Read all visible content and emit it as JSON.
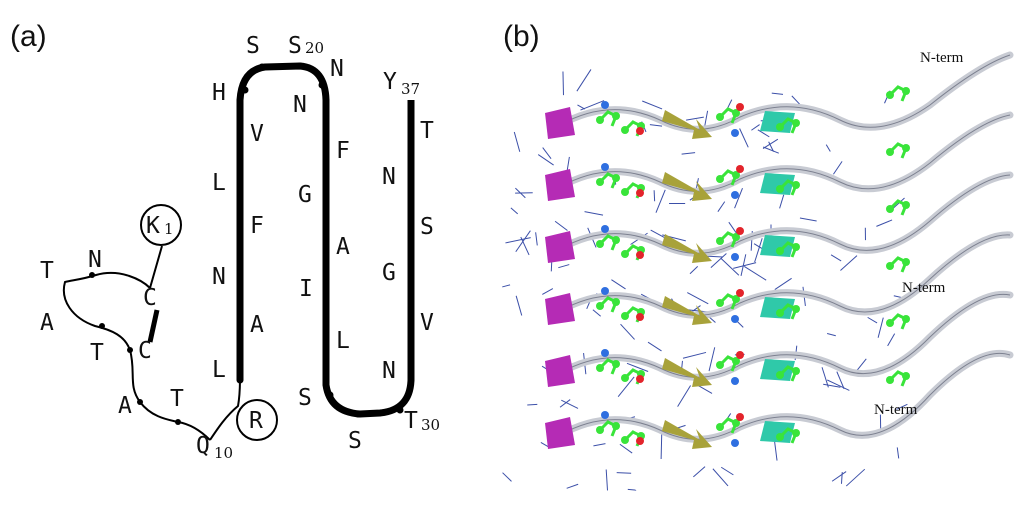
{
  "panels": {
    "a_label": "(a)",
    "b_label": "(b)"
  },
  "residues": {
    "r1": "K",
    "r1_num": "1",
    "r2": "C",
    "r3": "N",
    "r4": "T",
    "r5": "A",
    "r6": "T",
    "r7": "C",
    "r8": "A",
    "r9": "T",
    "r10": "Q",
    "r10_num": "10",
    "r11": "R",
    "r12": "L",
    "r13": "A",
    "r14": "N",
    "r15": "F",
    "r16": "L",
    "r17": "V",
    "r18": "H",
    "r19": "S",
    "r20": "S",
    "r20_num": "20",
    "r21": "N",
    "r22": "N",
    "r23": "F",
    "r24": "G",
    "r25": "A",
    "r26": "I",
    "r27": "L",
    "r28": "S",
    "r29": "S",
    "r30": "T",
    "r30_num": "30",
    "r31": "N",
    "r32": "V",
    "r33": "G",
    "r34": "S",
    "r35": "N",
    "r36": "T",
    "r37": "Y",
    "r37_num": "37"
  },
  "nterm_labels": [
    "N-term",
    "N-term",
    "N-term"
  ],
  "colors": {
    "backbone": "#000000",
    "ribbon": "#c8cbd3",
    "strand_yellow": "#a8a23a",
    "strand_magenta": "#b52bb5",
    "strand_cyan": "#2fc9a9",
    "side_chain_green": "#39e43a",
    "atom_red": "#e3242b",
    "atom_blue": "#2f6fe0",
    "bond_lines": "#3b4fa8"
  }
}
